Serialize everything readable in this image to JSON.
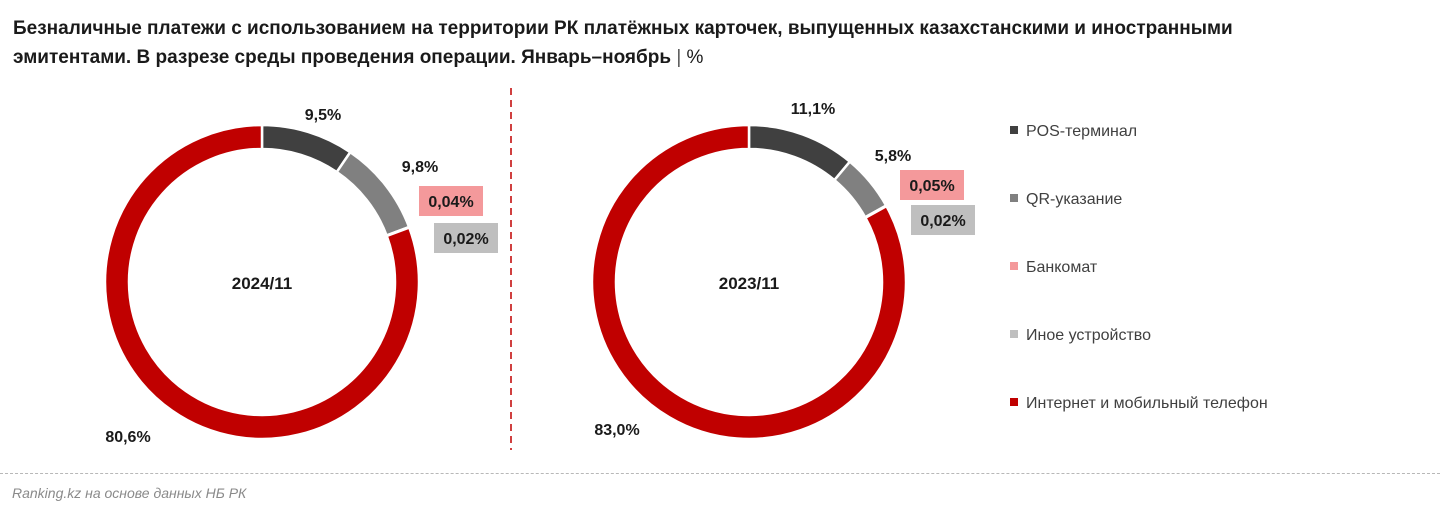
{
  "title": {
    "line1": "Безналичные платежи с использованием на территории РК платёжных карточек, выпущенных казахстанскими и иностранными",
    "line2": "эмитентами. В разрезе среды проведения операции. Январь–ноябрь",
    "separator": "|",
    "unit": "%"
  },
  "source": "Ranking.kz на основе данных НБ РК",
  "colors": {
    "pos": "#404040",
    "qr": "#808080",
    "atm": "#f4999b",
    "other": "#bfbfbf",
    "internet": "#c00000",
    "divider": "#c00000"
  },
  "legend": [
    {
      "key": "pos",
      "label": "POS-терминал"
    },
    {
      "key": "qr",
      "label": "QR-указание"
    },
    {
      "key": "atm",
      "label": "Банкомат"
    },
    {
      "key": "other",
      "label": "Иное устройство"
    },
    {
      "key": "internet",
      "label": "Интернет и мобильный телефон"
    }
  ],
  "chart_data": [
    {
      "type": "pie",
      "center_label": "2024/11",
      "categories": [
        "POS-терминал",
        "QR-указание",
        "Банкомат",
        "Иное устройство",
        "Интернет и мобильный телефон"
      ],
      "values": [
        9.5,
        9.8,
        0.04,
        0.02,
        80.6
      ],
      "labels": [
        "9,5%",
        "9,8%",
        "0,04%",
        "0,02%",
        "80,6%"
      ]
    },
    {
      "type": "pie",
      "center_label": "2023/11",
      "categories": [
        "POS-терминал",
        "QR-указание",
        "Банкомат",
        "Иное устройство",
        "Интернет и мобильный телефон"
      ],
      "values": [
        11.1,
        5.8,
        0.05,
        0.02,
        83.0
      ],
      "labels": [
        "11,1%",
        "5,8%",
        "0,05%",
        "0,02%",
        "83,0%"
      ]
    }
  ]
}
